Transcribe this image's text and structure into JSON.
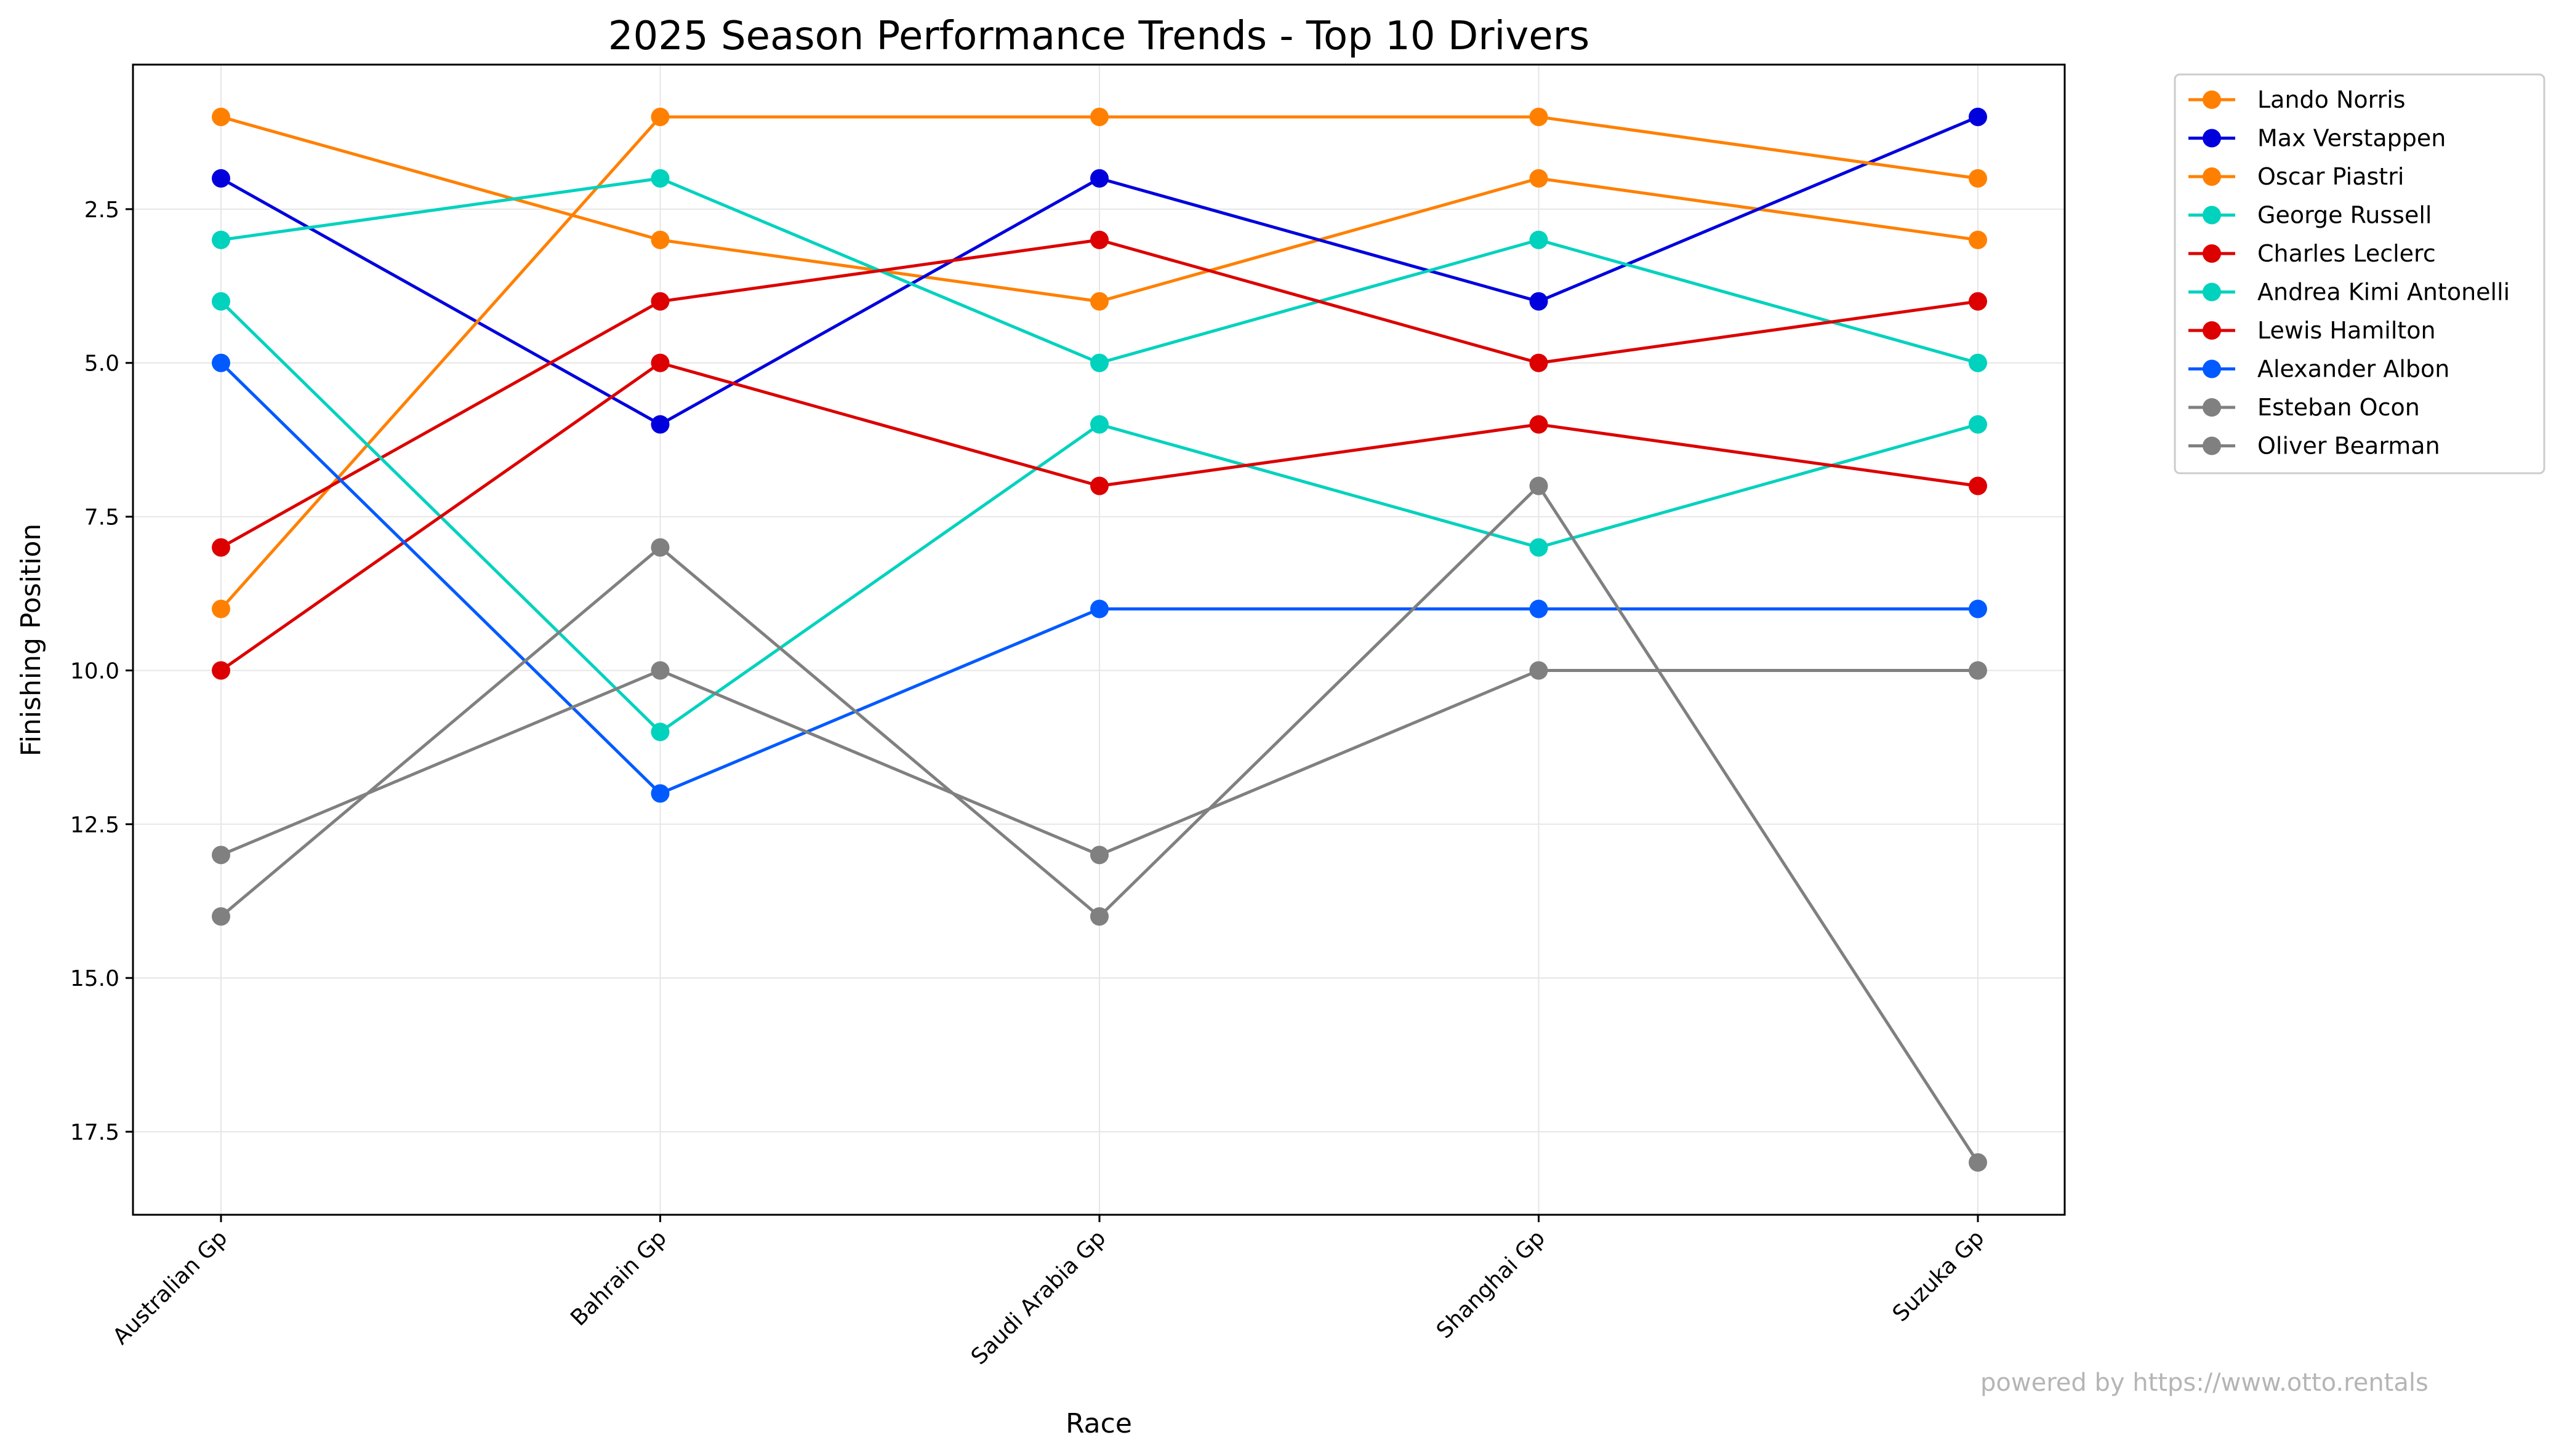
{
  "chart_data": {
    "type": "line",
    "title": "2025 Season Performance Trends - Top 10 Drivers",
    "xlabel": "Race",
    "ylabel": "Finishing Position",
    "categories": [
      "Australian Gp",
      "Bahrain Gp",
      "Saudi Arabia Gp",
      "Shanghai Gp",
      "Suzuka Gp"
    ],
    "ylim": [
      18.85,
      0.15
    ],
    "y_inverted": true,
    "yticks": [
      2.5,
      5.0,
      7.5,
      10.0,
      12.5,
      15.0,
      17.5
    ],
    "ytick_labels": [
      "2.5",
      "5.0",
      "7.5",
      "10.0",
      "12.5",
      "15.0",
      "17.5"
    ],
    "grid": true,
    "legend_position": "outside upper right",
    "series": [
      {
        "name": "Lando Norris",
        "color": "#ff8000",
        "values": [
          1,
          3,
          4,
          2,
          3
        ]
      },
      {
        "name": "Max Verstappen",
        "color": "#0000dd",
        "values": [
          2,
          6,
          2,
          4,
          1
        ]
      },
      {
        "name": "Oscar Piastri",
        "color": "#ff8000",
        "values": [
          9,
          1,
          1,
          1,
          2
        ]
      },
      {
        "name": "George Russell",
        "color": "#00d2be",
        "values": [
          3,
          2,
          5,
          3,
          5
        ]
      },
      {
        "name": "Charles Leclerc",
        "color": "#dc0000",
        "values": [
          8,
          4,
          3,
          5,
          4
        ]
      },
      {
        "name": "Andrea Kimi Antonelli",
        "color": "#00d2be",
        "values": [
          4,
          11,
          6,
          8,
          6
        ]
      },
      {
        "name": "Lewis Hamilton",
        "color": "#dc0000",
        "values": [
          10,
          5,
          7,
          6,
          7
        ]
      },
      {
        "name": "Alexander Albon",
        "color": "#005aff",
        "values": [
          5,
          12,
          9,
          9,
          9
        ]
      },
      {
        "name": "Esteban Ocon",
        "color": "#808080",
        "values": [
          13,
          10,
          13,
          10,
          10
        ]
      },
      {
        "name": "Oliver Bearman",
        "color": "#808080",
        "values": [
          14,
          8,
          14,
          7,
          18
        ]
      }
    ]
  },
  "watermark": "powered by https://www.otto.rentals"
}
